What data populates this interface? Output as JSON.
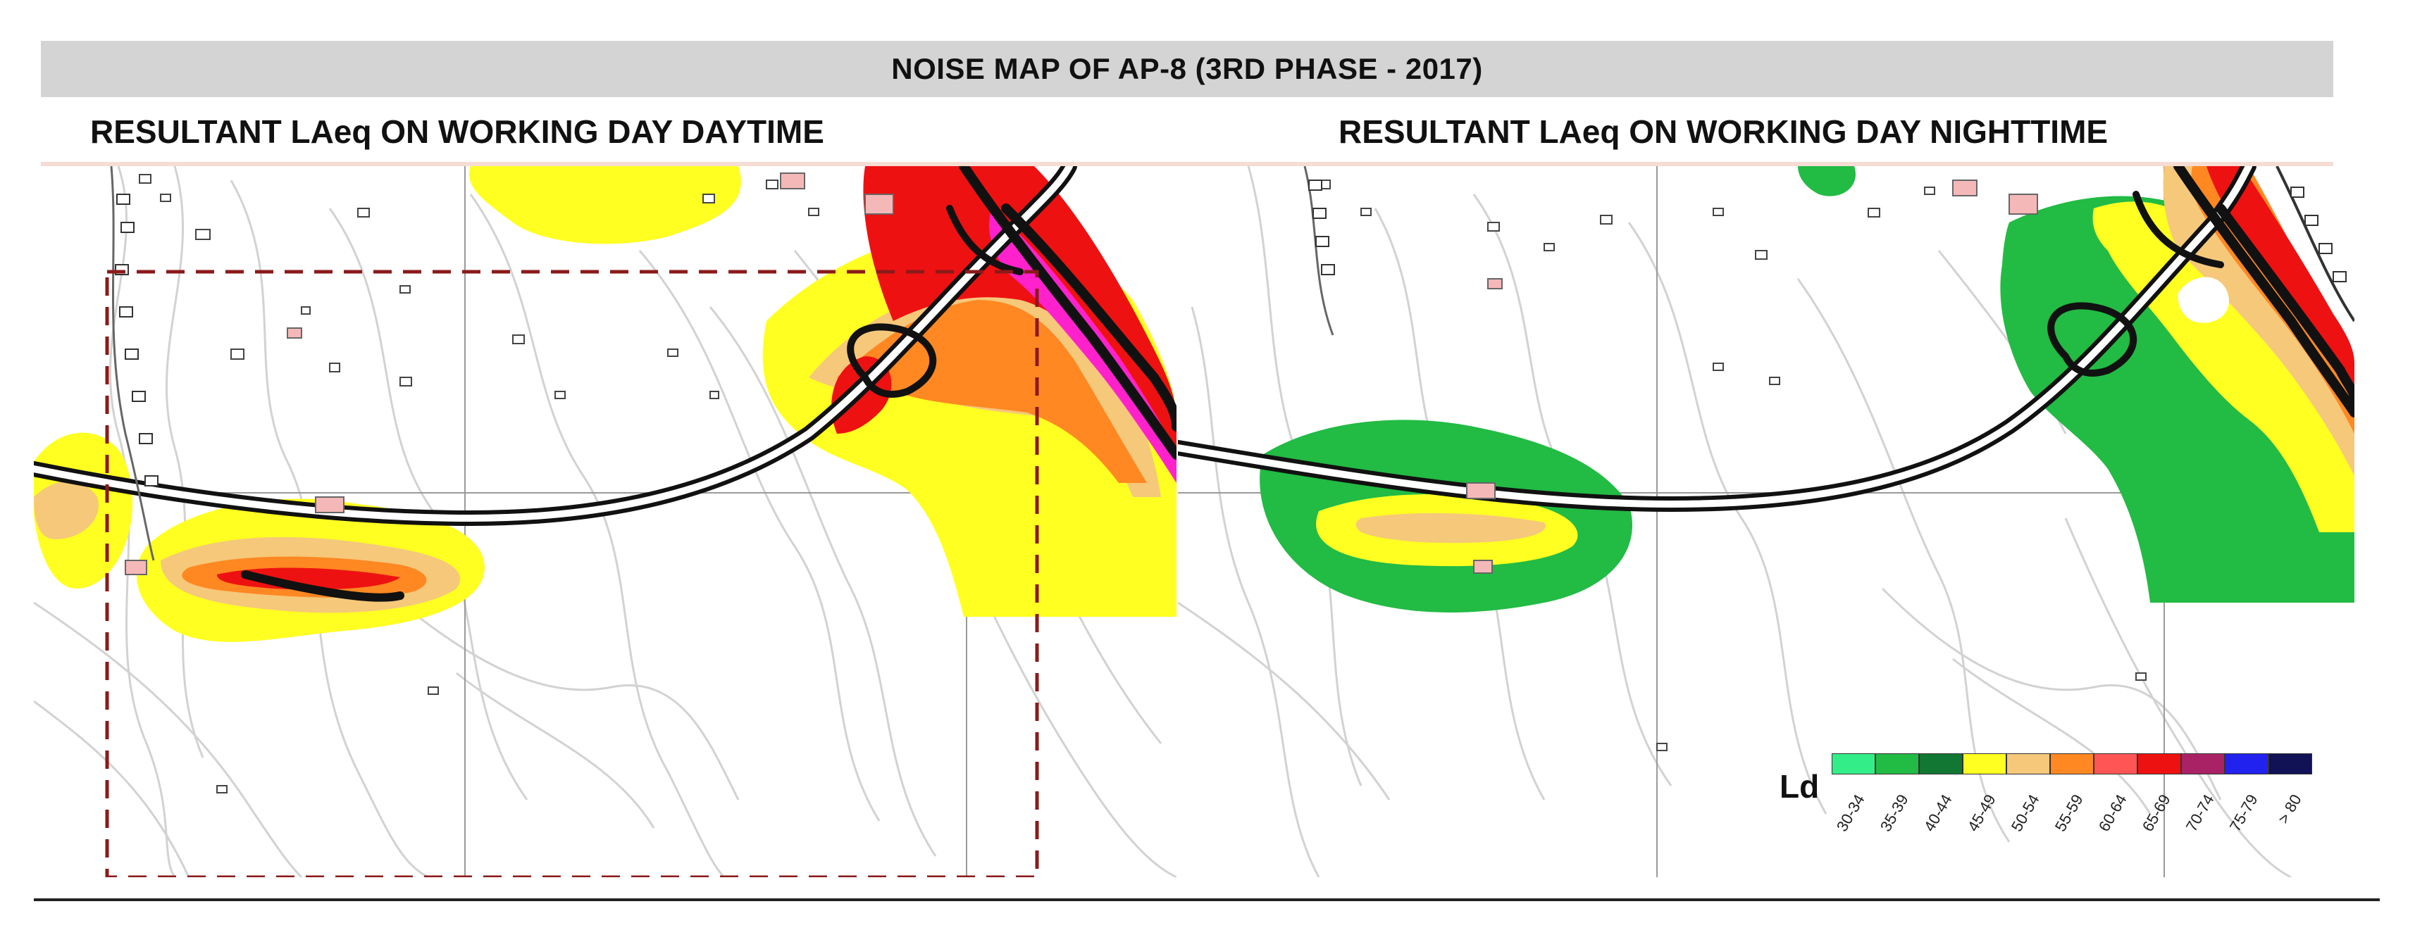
{
  "title": "NOISE MAP OF AP-8 (3RD PHASE - 2017)",
  "panels": {
    "left": {
      "subtitle": "RESULTANT LAeq ON WORKING DAY DAYTIME"
    },
    "right": {
      "subtitle": "RESULTANT LAeq ON WORKING DAY NIGHTTIME"
    }
  },
  "legend": {
    "title": "Ld",
    "items": [
      {
        "range": "30-34",
        "color": "#33ee88"
      },
      {
        "range": "35-39",
        "color": "#22bb44"
      },
      {
        "range": "40-44",
        "color": "#117733"
      },
      {
        "range": "45-49",
        "color": "#ffff22"
      },
      {
        "range": "50-54",
        "color": "#f5c87a"
      },
      {
        "range": "55-59",
        "color": "#ff8822"
      },
      {
        "range": "60-64",
        "color": "#ff5555"
      },
      {
        "range": "65-69",
        "color": "#ee1111"
      },
      {
        "range": "70-74",
        "color": "#aa2266"
      },
      {
        "range": "75-79",
        "color": "#2222ee"
      },
      {
        "range": "> 80",
        "color": "#111155"
      }
    ]
  },
  "colors": {
    "road": "#111111",
    "highlight_box": "#8b1a1a",
    "contour": "#cfcfcf",
    "grid": "#999999"
  }
}
